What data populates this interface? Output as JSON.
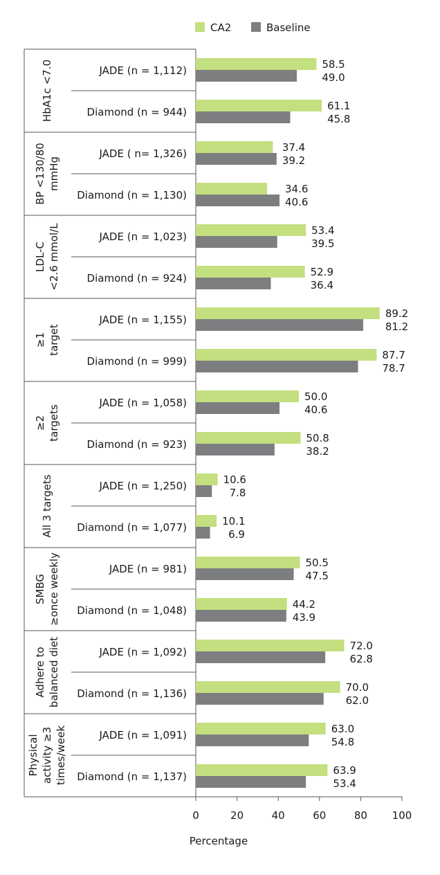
{
  "chart_data": {
    "type": "bar",
    "orientation": "horizontal",
    "xlabel": "Percentage",
    "xlim": [
      0,
      100
    ],
    "xticks": [
      "0",
      "20",
      "40",
      "60",
      "80",
      "100"
    ],
    "legend_position": "top",
    "series": [
      {
        "name": "CA2",
        "color": "#c3df7f"
      },
      {
        "name": "Baseline",
        "color": "#7d7e80"
      }
    ],
    "groups": [
      {
        "label": [
          "HbA1c <7.0"
        ],
        "rows": [
          {
            "label": "JADE (n = 1,112)",
            "values": [
              58.5,
              49.0
            ],
            "labels": [
              "58.5",
              "49.0"
            ]
          },
          {
            "label": "Diamond (n = 944)",
            "values": [
              61.1,
              45.8
            ],
            "labels": [
              "61.1",
              "45.8"
            ]
          }
        ]
      },
      {
        "label": [
          "BP <130/80",
          "mmHg"
        ],
        "rows": [
          {
            "label": "JADE ( n= 1,326)",
            "values": [
              37.4,
              39.2
            ],
            "labels": [
              "37.4",
              "39.2"
            ]
          },
          {
            "label": "Diamond (n = 1,130)",
            "values": [
              34.6,
              40.6
            ],
            "labels": [
              "34.6",
              "40.6"
            ]
          }
        ]
      },
      {
        "label": [
          "LDL-C",
          "<2.6 mmol/L"
        ],
        "rows": [
          {
            "label": "JADE (n = 1,023)",
            "values": [
              53.4,
              39.5
            ],
            "labels": [
              "53.4",
              "39.5"
            ]
          },
          {
            "label": "Diamond (n = 924)",
            "values": [
              52.9,
              36.4
            ],
            "labels": [
              "52.9",
              "36.4"
            ]
          }
        ]
      },
      {
        "label": [
          "≥1",
          "target"
        ],
        "rows": [
          {
            "label": "JADE (n = 1,155)",
            "values": [
              89.2,
              81.2
            ],
            "labels": [
              "89.2",
              "81.2"
            ]
          },
          {
            "label": "Diamond (n = 999)",
            "values": [
              87.7,
              78.7
            ],
            "labels": [
              "87.7",
              "78.7"
            ]
          }
        ]
      },
      {
        "label": [
          "≥2",
          "targets"
        ],
        "rows": [
          {
            "label": "JADE (n = 1,058)",
            "values": [
              50.0,
              40.6
            ],
            "labels": [
              "50.0",
              "40.6"
            ]
          },
          {
            "label": "Diamond (n = 923)",
            "values": [
              50.8,
              38.2
            ],
            "labels": [
              "50.8",
              "38.2"
            ]
          }
        ]
      },
      {
        "label": [
          "All 3 targets"
        ],
        "rows": [
          {
            "label": "JADE (n = 1,250)",
            "values": [
              10.6,
              7.8
            ],
            "labels": [
              "10.6",
              "7.8"
            ]
          },
          {
            "label": "Diamond (n = 1,077)",
            "values": [
              10.1,
              6.9
            ],
            "labels": [
              "10.1",
              "6.9"
            ]
          }
        ]
      },
      {
        "label": [
          "SMBG",
          "≥once weekly"
        ],
        "rows": [
          {
            "label": "JADE (n = 981)",
            "values": [
              50.5,
              47.5
            ],
            "labels": [
              "50.5",
              "47.5"
            ]
          },
          {
            "label": "Diamond (n = 1,048)",
            "values": [
              44.2,
              43.9
            ],
            "labels": [
              "44.2",
              "43.9"
            ]
          }
        ]
      },
      {
        "label": [
          "Adhere to",
          "balanced diet"
        ],
        "rows": [
          {
            "label": "JADE (n = 1,092)",
            "values": [
              72.0,
              62.8
            ],
            "labels": [
              "72.0",
              "62.8"
            ]
          },
          {
            "label": "Diamond (n = 1,136)",
            "values": [
              70.0,
              62.0
            ],
            "labels": [
              "70.0",
              "62.0"
            ]
          }
        ]
      },
      {
        "label": [
          "Physical",
          "activity ≥3",
          "times/week"
        ],
        "rows": [
          {
            "label": "JADE (n = 1,091)",
            "values": [
              63.0,
              54.8
            ],
            "labels": [
              "63.0",
              "54.8"
            ]
          },
          {
            "label": "Diamond (n = 1,137)",
            "values": [
              63.9,
              53.4
            ],
            "labels": [
              "63.9",
              "53.4"
            ]
          }
        ]
      }
    ]
  }
}
